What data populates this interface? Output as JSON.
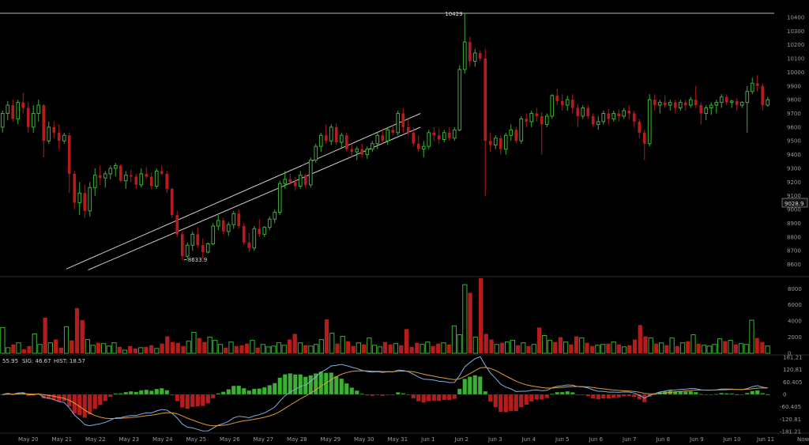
{
  "colors": {
    "up": "#3cb034",
    "down": "#b51d1d",
    "macd_line": "#7fb0e0",
    "signal_line": "#e09a3a",
    "trendline": "#d0d0d0",
    "axis_text": "#9a9a9a"
  },
  "price_label": "9028.9",
  "macd_readout": {
    "macd": "55.95",
    "sig": "SIG: 46.67",
    "hist": "HIST: 18.57"
  },
  "chart_data": [
    {
      "type": "candlestick",
      "title": "",
      "ylim": [
        8540,
        10480
      ],
      "yticks": [
        8600,
        8700,
        8800,
        8900,
        9000,
        9100,
        9200,
        9300,
        9400,
        9500,
        9600,
        9700,
        9800,
        9900,
        10000,
        10100,
        10200,
        10300,
        10400
      ],
      "x_labels": [
        "May 20",
        "May 21",
        "May 22",
        "May 23",
        "May 24",
        "May 25",
        "May 26",
        "May 27",
        "May 28",
        "May 29",
        "May 30",
        "May 31",
        "Jun 1",
        "Jun 2",
        "Jun 3",
        "Jun 4",
        "Jun 5",
        "Jun 6",
        "Jun 7",
        "Jun 8",
        "Jun 9",
        "Jun 10",
        "Jun 11",
        "Now"
      ],
      "x_marker": "Jun 5",
      "annotations": [
        {
          "text": "10429",
          "value": 10429
        },
        {
          "text": "8633.9",
          "value": 8633.9
        }
      ],
      "trendlines": [
        {
          "type": "horizontal",
          "value": 10429
        },
        {
          "type": "rising",
          "from": {
            "day": 1.15,
            "price": 8567
          },
          "to": {
            "day": 11.7,
            "price": 9700
          }
        },
        {
          "type": "rising",
          "from": {
            "day": 1.8,
            "price": 8560
          },
          "to": {
            "day": 11.7,
            "price": 9600
          }
        }
      ],
      "candles_note": "hourly-style candles, open/high/low/close in USD",
      "candles": [
        [
          9600,
          9720,
          9560,
          9700
        ],
        [
          9700,
          9790,
          9650,
          9760
        ],
        [
          9760,
          9800,
          9640,
          9660
        ],
        [
          9660,
          9800,
          9620,
          9780
        ],
        [
          9780,
          9850,
          9700,
          9740
        ],
        [
          9740,
          9780,
          9560,
          9600
        ],
        [
          9600,
          9760,
          9560,
          9700
        ],
        [
          9700,
          9800,
          9640,
          9760
        ],
        [
          9760,
          9770,
          9380,
          9500
        ],
        [
          9500,
          9640,
          9480,
          9600
        ],
        [
          9600,
          9640,
          9520,
          9560
        ],
        [
          9560,
          9620,
          9440,
          9500
        ],
        [
          9500,
          9560,
          9480,
          9540
        ],
        [
          9540,
          9560,
          9120,
          9260
        ],
        [
          9260,
          9280,
          9000,
          9050
        ],
        [
          9050,
          9200,
          8960,
          9120
        ],
        [
          9120,
          9180,
          8940,
          8990
        ],
        [
          8990,
          9200,
          8950,
          9160
        ],
        [
          9160,
          9300,
          9100,
          9250
        ],
        [
          9250,
          9320,
          9180,
          9230
        ],
        [
          9230,
          9280,
          9160,
          9260
        ],
        [
          9260,
          9320,
          9220,
          9300
        ],
        [
          9300,
          9340,
          9240,
          9320
        ],
        [
          9320,
          9330,
          9200,
          9210
        ],
        [
          9210,
          9280,
          9150,
          9250
        ],
        [
          9250,
          9290,
          9200,
          9240
        ],
        [
          9240,
          9260,
          9150,
          9180
        ],
        [
          9180,
          9300,
          9160,
          9260
        ],
        [
          9260,
          9310,
          9220,
          9240
        ],
        [
          9240,
          9270,
          9150,
          9170
        ],
        [
          9170,
          9300,
          9150,
          9280
        ],
        [
          9280,
          9320,
          9250,
          9260
        ],
        [
          9260,
          9280,
          9120,
          9150
        ],
        [
          9150,
          9160,
          8940,
          8960
        ],
        [
          8960,
          8990,
          8800,
          8820
        ],
        [
          8820,
          8840,
          8630,
          8660
        ],
        [
          8660,
          8760,
          8640,
          8740
        ],
        [
          8740,
          8840,
          8700,
          8820
        ],
        [
          8820,
          8870,
          8720,
          8740
        ],
        [
          8740,
          8790,
          8640,
          8690
        ],
        [
          8690,
          8760,
          8680,
          8750
        ],
        [
          8750,
          8900,
          8740,
          8880
        ],
        [
          8880,
          8960,
          8850,
          8920
        ],
        [
          8920,
          8940,
          8820,
          8840
        ],
        [
          8840,
          8910,
          8810,
          8890
        ],
        [
          8890,
          8990,
          8860,
          8970
        ],
        [
          8970,
          9000,
          8860,
          8880
        ],
        [
          8880,
          8900,
          8740,
          8760
        ],
        [
          8760,
          8830,
          8690,
          8720
        ],
        [
          8720,
          8880,
          8700,
          8860
        ],
        [
          8860,
          8930,
          8800,
          8820
        ],
        [
          8820,
          8880,
          8800,
          8870
        ],
        [
          8870,
          8950,
          8850,
          8930
        ],
        [
          8930,
          9000,
          8900,
          8980
        ],
        [
          8980,
          9210,
          8960,
          9190
        ],
        [
          9190,
          9280,
          9150,
          9220
        ],
        [
          9220,
          9260,
          9180,
          9200
        ],
        [
          9200,
          9240,
          9140,
          9170
        ],
        [
          9170,
          9280,
          9150,
          9250
        ],
        [
          9250,
          9260,
          9160,
          9180
        ],
        [
          9180,
          9380,
          9160,
          9360
        ],
        [
          9360,
          9480,
          9340,
          9460
        ],
        [
          9460,
          9560,
          9420,
          9540
        ],
        [
          9540,
          9620,
          9480,
          9500
        ],
        [
          9500,
          9620,
          9470,
          9600
        ],
        [
          9600,
          9630,
          9470,
          9490
        ],
        [
          9490,
          9560,
          9450,
          9540
        ],
        [
          9540,
          9560,
          9420,
          9440
        ],
        [
          9440,
          9480,
          9380,
          9420
        ],
        [
          9420,
          9460,
          9360,
          9440
        ],
        [
          9440,
          9480,
          9380,
          9400
        ],
        [
          9400,
          9460,
          9370,
          9440
        ],
        [
          9440,
          9500,
          9420,
          9480
        ],
        [
          9480,
          9560,
          9440,
          9540
        ],
        [
          9540,
          9590,
          9480,
          9500
        ],
        [
          9500,
          9600,
          9470,
          9580
        ],
        [
          9580,
          9620,
          9540,
          9560
        ],
        [
          9560,
          9720,
          9540,
          9700
        ],
        [
          9700,
          9740,
          9560,
          9600
        ],
        [
          9600,
          9660,
          9540,
          9560
        ],
        [
          9560,
          9600,
          9460,
          9480
        ],
        [
          9480,
          9540,
          9420,
          9440
        ],
        [
          9440,
          9500,
          9380,
          9460
        ],
        [
          9460,
          9580,
          9440,
          9560
        ],
        [
          9560,
          9600,
          9500,
          9540
        ],
        [
          9540,
          9590,
          9480,
          9510
        ],
        [
          9510,
          9580,
          9490,
          9560
        ],
        [
          9560,
          9600,
          9500,
          9520
        ],
        [
          9520,
          9600,
          9500,
          9580
        ],
        [
          9580,
          10050,
          9570,
          10020
        ],
        [
          10020,
          10429,
          9990,
          10220
        ],
        [
          10220,
          10260,
          10040,
          10080
        ],
        [
          10080,
          10170,
          10040,
          10140
        ],
        [
          10140,
          10160,
          10080,
          10100
        ],
        [
          10100,
          10170,
          9100,
          9500
        ],
        [
          9500,
          9560,
          9420,
          9470
        ],
        [
          9470,
          9540,
          9440,
          9520
        ],
        [
          9520,
          9540,
          9400,
          9440
        ],
        [
          9440,
          9560,
          9400,
          9540
        ],
        [
          9540,
          9620,
          9500,
          9580
        ],
        [
          9580,
          9600,
          9480,
          9500
        ],
        [
          9500,
          9680,
          9480,
          9660
        ],
        [
          9660,
          9700,
          9600,
          9640
        ],
        [
          9640,
          9720,
          9600,
          9700
        ],
        [
          9700,
          9740,
          9640,
          9680
        ],
        [
          9680,
          9710,
          9400,
          9620
        ],
        [
          9620,
          9700,
          9600,
          9680
        ],
        [
          9680,
          9840,
          9660,
          9830
        ],
        [
          9830,
          9880,
          9760,
          9790
        ],
        [
          9790,
          9840,
          9720,
          9760
        ],
        [
          9760,
          9830,
          9720,
          9800
        ],
        [
          9800,
          9840,
          9700,
          9740
        ],
        [
          9740,
          9770,
          9600,
          9680
        ],
        [
          9680,
          9760,
          9660,
          9740
        ],
        [
          9740,
          9760,
          9660,
          9680
        ],
        [
          9680,
          9700,
          9600,
          9620
        ],
        [
          9620,
          9680,
          9580,
          9640
        ],
        [
          9640,
          9720,
          9620,
          9700
        ],
        [
          9700,
          9730,
          9620,
          9660
        ],
        [
          9660,
          9720,
          9640,
          9700
        ],
        [
          9700,
          9730,
          9640,
          9680
        ],
        [
          9680,
          9740,
          9660,
          9720
        ],
        [
          9720,
          9760,
          9660,
          9700
        ],
        [
          9700,
          9720,
          9600,
          9640
        ],
        [
          9640,
          9660,
          9520,
          9560
        ],
        [
          9560,
          9580,
          9360,
          9480
        ],
        [
          9480,
          9840,
          9460,
          9800
        ],
        [
          9800,
          9840,
          9720,
          9760
        ],
        [
          9760,
          9800,
          9700,
          9780
        ],
        [
          9780,
          9830,
          9740,
          9760
        ],
        [
          9760,
          9800,
          9720,
          9780
        ],
        [
          9780,
          9800,
          9700,
          9740
        ],
        [
          9740,
          9800,
          9720,
          9780
        ],
        [
          9780,
          9800,
          9720,
          9760
        ],
        [
          9760,
          9820,
          9740,
          9800
        ],
        [
          9800,
          9900,
          9740,
          9760
        ],
        [
          9760,
          9780,
          9620,
          9700
        ],
        [
          9700,
          9760,
          9650,
          9740
        ],
        [
          9740,
          9780,
          9690,
          9760
        ],
        [
          9760,
          9800,
          9700,
          9780
        ],
        [
          9780,
          9840,
          9740,
          9820
        ],
        [
          9820,
          9840,
          9760,
          9780
        ],
        [
          9780,
          9800,
          9740,
          9790
        ],
        [
          9790,
          9810,
          9720,
          9760
        ],
        [
          9760,
          9790,
          9740,
          9780
        ],
        [
          9780,
          9900,
          9560,
          9860
        ],
        [
          9860,
          9960,
          9840,
          9920
        ],
        [
          9920,
          9980,
          9860,
          9900
        ],
        [
          9900,
          9920,
          9720,
          9760
        ],
        [
          9760,
          9820,
          9750,
          9800
        ]
      ]
    },
    {
      "type": "bar",
      "title": "",
      "ylim": [
        0,
        9300
      ],
      "yticks": [
        0,
        2000,
        4000,
        6000,
        8000
      ],
      "values": [
        3200,
        700,
        1100,
        1300,
        500,
        900,
        2400,
        1100,
        4400,
        1300,
        1700,
        700,
        3300,
        1600,
        5600,
        4100,
        1700,
        1000,
        1300,
        1200,
        900,
        1300,
        800,
        400,
        900,
        600,
        700,
        800,
        1000,
        600,
        1200,
        2100,
        1400,
        1300,
        900,
        1500,
        2600,
        1900,
        1400,
        2000,
        1600,
        1100,
        700,
        1400,
        900,
        1000,
        1200,
        1600,
        700,
        1100,
        800,
        900,
        1300,
        1000,
        1700,
        2400,
        1300,
        1000,
        900,
        1100,
        1700,
        4200,
        2500,
        1200,
        2100,
        1500,
        900,
        1300,
        1100,
        1900,
        1000,
        800,
        1400,
        1100,
        1200,
        1000,
        3000,
        800,
        1300,
        1100,
        1400,
        900,
        1200,
        1300,
        1100,
        3400,
        2300,
        8500,
        7500,
        2000,
        9300,
        2400,
        1700,
        1100,
        1300,
        1400,
        1600,
        1000,
        1300,
        900,
        1100,
        3200,
        2200,
        1600,
        1400,
        2000,
        1400,
        1100,
        2100,
        1900,
        1300,
        900,
        1000,
        1100,
        1200,
        1400,
        1100,
        800,
        1000,
        1700,
        3500,
        2100,
        1900,
        1200,
        1300,
        1000,
        1900,
        900,
        1300,
        1500,
        2300,
        1200,
        1000,
        900,
        1100,
        1800,
        1500,
        1600,
        1100,
        1200,
        1100,
        4100,
        1900,
        1400,
        900
      ]
    },
    {
      "type": "macd",
      "title": "",
      "ylim": [
        -181.21,
        181.21
      ],
      "yticks": [
        181.21,
        120.81,
        60.405,
        0,
        -60.405,
        -120.81,
        -181.21
      ],
      "macd_readout": {
        "macd": 55.95,
        "signal": 46.67,
        "hist": 18.57
      }
    }
  ]
}
